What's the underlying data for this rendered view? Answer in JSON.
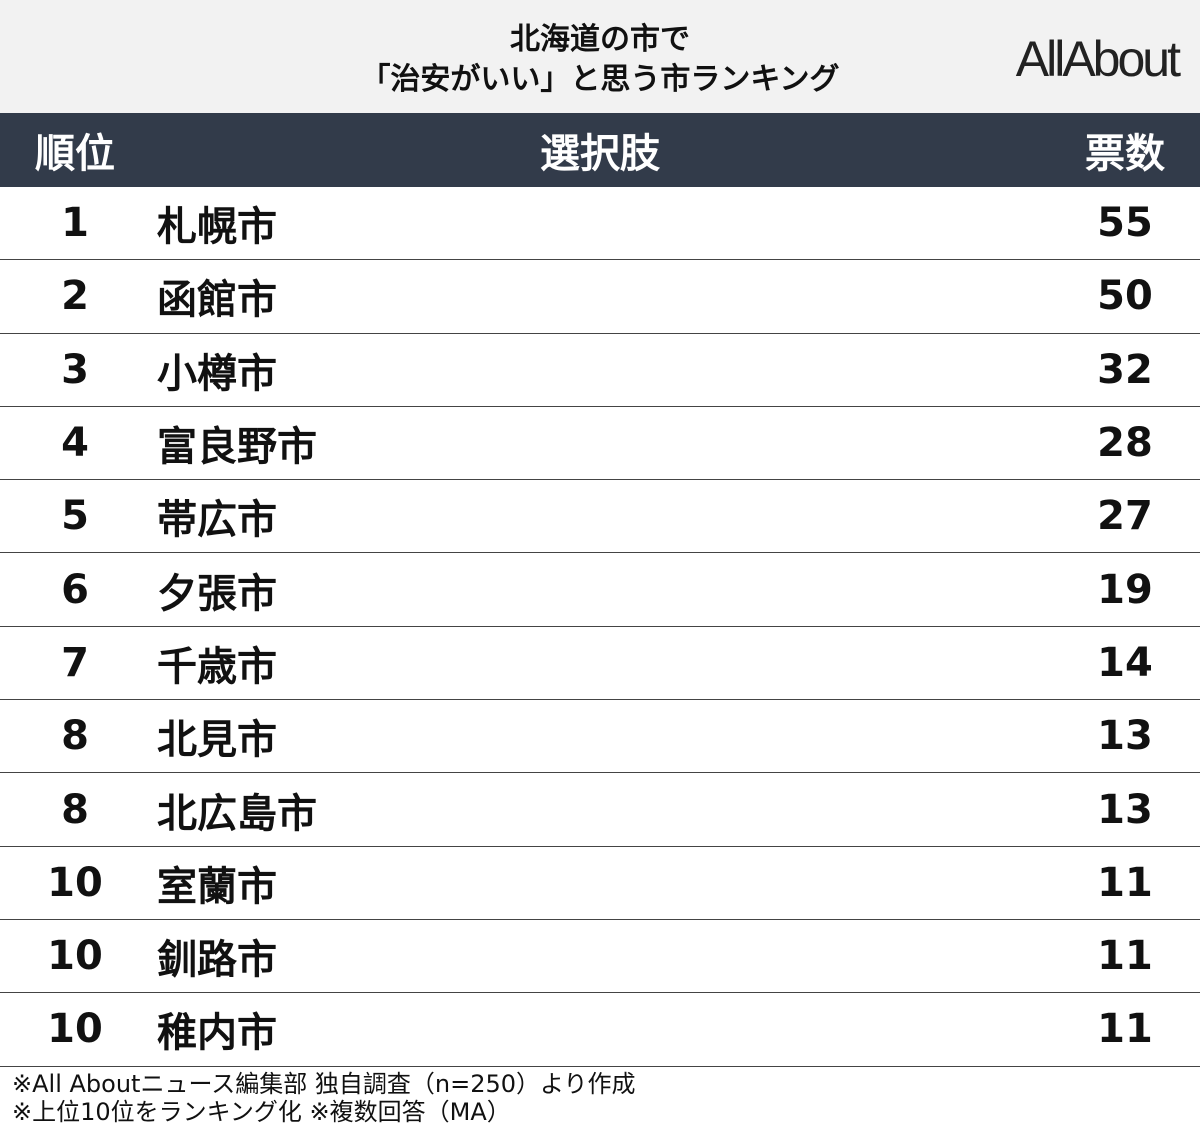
{
  "header": {
    "title_lines": [
      "北海道の市で",
      "「治安がいい」と思う市ランキング"
    ],
    "logo": "AllAbout"
  },
  "table": {
    "columns": [
      "順位",
      "選択肢",
      "票数"
    ],
    "rows": [
      [
        1,
        "札幌市",
        55
      ],
      [
        2,
        "函館市",
        50
      ],
      [
        3,
        "小樽市",
        32
      ],
      [
        4,
        "富良野市",
        28
      ],
      [
        5,
        "帯広市",
        27
      ],
      [
        6,
        "夕張市",
        19
      ],
      [
        7,
        "千歳市",
        14
      ],
      [
        8,
        "北見市",
        13
      ],
      [
        8,
        "北広島市",
        13
      ],
      [
        10,
        "室蘭市",
        11
      ],
      [
        10,
        "釧路市",
        11
      ],
      [
        10,
        "稚内市",
        11
      ]
    ]
  },
  "footer": {
    "notes": [
      "※All Aboutニュース編集部 独自調査（n=250）より作成",
      "※上位10位をランキング化 ※複数回答（MA）"
    ]
  }
}
